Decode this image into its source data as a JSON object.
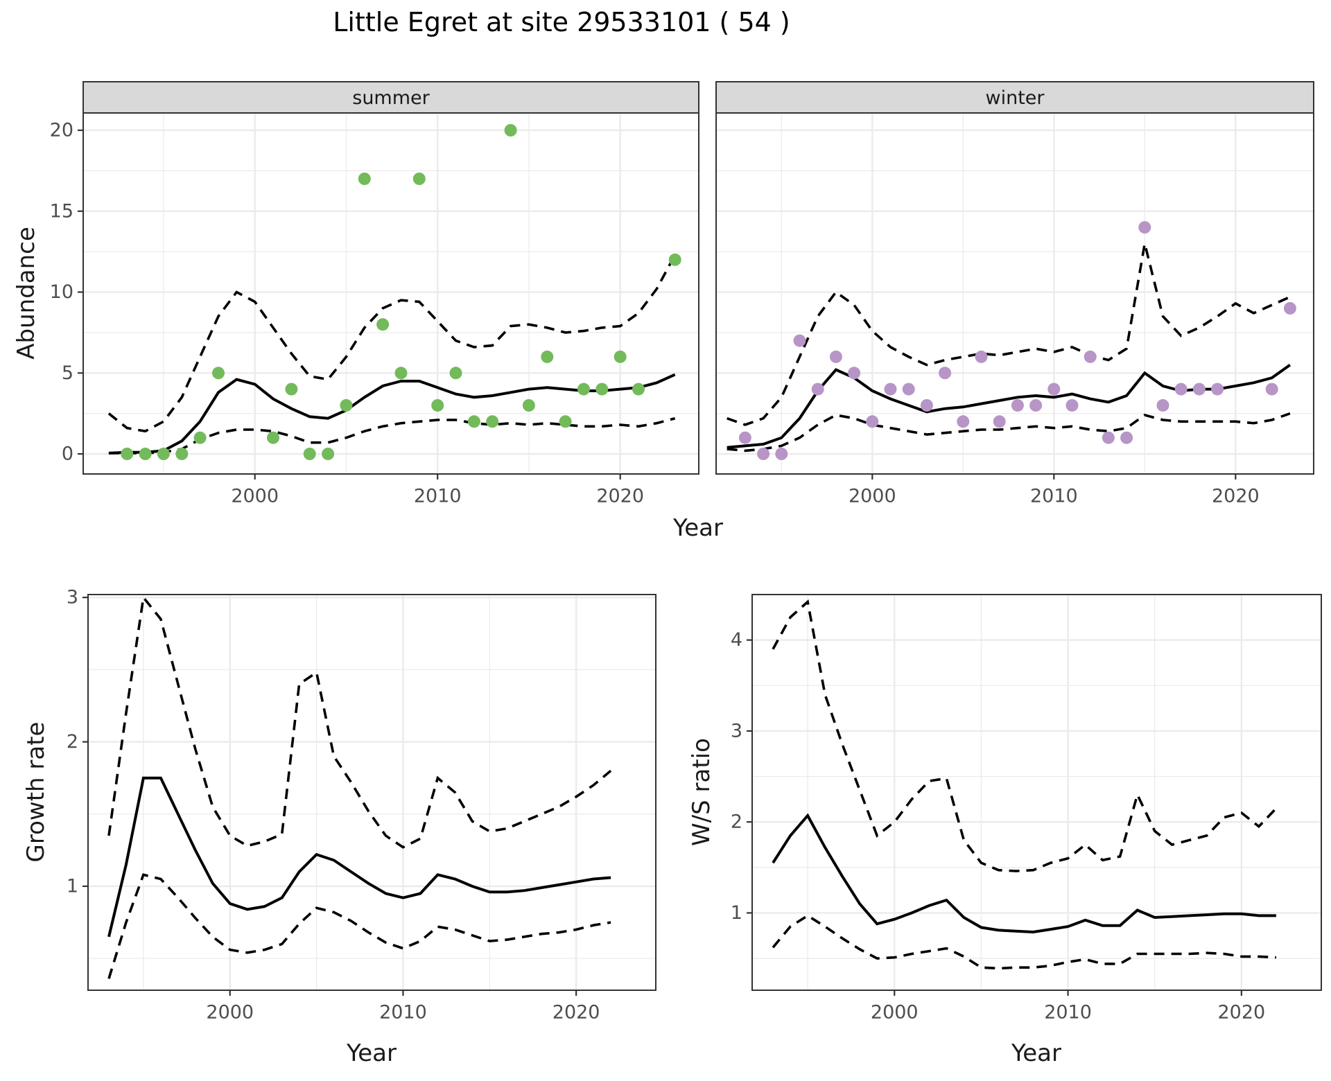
{
  "title": "Little Egret at site 29533101 ( 54 )",
  "colors": {
    "summer_point": "#73BA5B",
    "winter_point": "#B795C7",
    "line": "#000000",
    "panel_border": "#333333",
    "grid": "#EBEBEB",
    "strip_bg": "#D9D9D9",
    "tick_text": "#4D4D4D",
    "label_text": "#1A1A1A",
    "background": "#FFFFFF"
  },
  "chart_data": [
    {
      "type": "scatter+line",
      "facet": "summer",
      "xlabel": "Year",
      "ylabel": "Abundance",
      "xlim": [
        1990.6,
        2024.3
      ],
      "ylim": [
        -1.24,
        21.07
      ],
      "xticks": [
        2000,
        2010,
        2020
      ],
      "xminor": [
        1995,
        2005,
        2015
      ],
      "yticks": [
        0,
        5,
        10,
        15,
        20
      ],
      "yminor": [
        2.5,
        7.5,
        12.5,
        17.5
      ],
      "grid": "on",
      "legend": "none",
      "points": {
        "years": [
          1993,
          1994,
          1995,
          1996,
          1997,
          1998,
          2001,
          2002,
          2003,
          2004,
          2005,
          2006,
          2007,
          2008,
          2009,
          2010,
          2011,
          2012,
          2013,
          2014,
          2015,
          2016,
          2017,
          2018,
          2019,
          2020,
          2021,
          2023
        ],
        "values": [
          0,
          0,
          0,
          0,
          1,
          5,
          1,
          4,
          0,
          0,
          3,
          17,
          8,
          5,
          17,
          3,
          5,
          2,
          2,
          20,
          3,
          6,
          2,
          4,
          4,
          6,
          4,
          12
        ]
      },
      "series": [
        {
          "name": "median",
          "style": "solid",
          "year_start": 1992,
          "values": [
            0.05,
            0.1,
            0.1,
            0.2,
            0.8,
            2.0,
            3.8,
            4.6,
            4.3,
            3.4,
            2.8,
            2.3,
            2.2,
            2.7,
            3.5,
            4.2,
            4.5,
            4.5,
            4.1,
            3.7,
            3.5,
            3.6,
            3.8,
            4.0,
            4.1,
            4.0,
            3.9,
            3.9,
            4.0,
            4.1,
            4.4,
            4.9
          ]
        },
        {
          "name": "upper 95% CI",
          "style": "dashed",
          "year_start": 1992,
          "values": [
            2.5,
            1.6,
            1.4,
            2.0,
            3.5,
            6.0,
            8.5,
            10.0,
            9.4,
            7.8,
            6.2,
            4.8,
            4.6,
            6.0,
            7.8,
            9.0,
            9.5,
            9.4,
            8.2,
            7.0,
            6.6,
            6.7,
            7.9,
            8.0,
            7.8,
            7.5,
            7.6,
            7.8,
            7.9,
            8.7,
            10.2,
            12.3
          ]
        },
        {
          "name": "lower 95% CI",
          "style": "dashed",
          "year_start": 1992,
          "values": [
            0.05,
            0.05,
            0.05,
            0.1,
            0.3,
            0.9,
            1.3,
            1.5,
            1.5,
            1.4,
            1.1,
            0.7,
            0.7,
            1.0,
            1.4,
            1.7,
            1.9,
            2.0,
            2.1,
            2.1,
            1.9,
            1.8,
            1.9,
            1.8,
            1.9,
            1.8,
            1.7,
            1.7,
            1.8,
            1.7,
            1.9,
            2.2
          ]
        }
      ]
    },
    {
      "type": "scatter+line",
      "facet": "winter",
      "xlabel": "",
      "ylabel": "",
      "xlim": [
        1991.4,
        2024.3
      ],
      "ylim": [
        -1.24,
        21.07
      ],
      "xticks": [
        2000,
        2010,
        2020
      ],
      "xminor": [
        1995,
        2005,
        2015
      ],
      "yticks": [
        0,
        5,
        10,
        15,
        20
      ],
      "yminor": [
        2.5,
        7.5,
        12.5,
        17.5
      ],
      "grid": "on",
      "legend": "none",
      "points": {
        "years": [
          1993,
          1994,
          1995,
          1996,
          1997,
          1998,
          1999,
          2000,
          2001,
          2002,
          2003,
          2004,
          2005,
          2006,
          2007,
          2008,
          2009,
          2010,
          2011,
          2012,
          2013,
          2014,
          2015,
          2016,
          2017,
          2018,
          2019,
          2022,
          2023
        ],
        "values": [
          1,
          0,
          0,
          7,
          4,
          6,
          5,
          2,
          4,
          4,
          3,
          5,
          2,
          6,
          2,
          3,
          3,
          4,
          3,
          6,
          1,
          1,
          14,
          3,
          4,
          4,
          4,
          4,
          9
        ]
      },
      "series": [
        {
          "name": "median",
          "style": "solid",
          "year_start": 1992,
          "values": [
            0.4,
            0.5,
            0.6,
            1.0,
            2.2,
            3.9,
            5.2,
            4.7,
            3.9,
            3.4,
            3.0,
            2.6,
            2.8,
            2.9,
            3.1,
            3.3,
            3.5,
            3.6,
            3.5,
            3.7,
            3.4,
            3.2,
            3.6,
            5.0,
            4.2,
            3.9,
            4.0,
            4.0,
            4.2,
            4.4,
            4.7,
            5.5
          ]
        },
        {
          "name": "upper 95% CI",
          "style": "dashed",
          "year_start": 1992,
          "values": [
            2.2,
            1.8,
            2.2,
            3.5,
            6.0,
            8.5,
            10.0,
            9.2,
            7.6,
            6.6,
            6.0,
            5.5,
            5.8,
            6.0,
            6.2,
            6.1,
            6.3,
            6.5,
            6.3,
            6.6,
            6.1,
            5.8,
            6.5,
            13.0,
            8.5,
            7.3,
            7.8,
            8.5,
            9.3,
            8.7,
            9.2,
            9.7
          ]
        },
        {
          "name": "lower 95% CI",
          "style": "dashed",
          "year_start": 1992,
          "values": [
            0.3,
            0.2,
            0.3,
            0.5,
            1.0,
            1.8,
            2.4,
            2.2,
            1.8,
            1.6,
            1.4,
            1.2,
            1.3,
            1.4,
            1.5,
            1.5,
            1.6,
            1.7,
            1.6,
            1.7,
            1.5,
            1.4,
            1.6,
            2.4,
            2.1,
            2.0,
            2.0,
            2.0,
            2.0,
            1.9,
            2.1,
            2.5
          ]
        }
      ]
    },
    {
      "type": "line",
      "facet": "",
      "xlabel": "Year",
      "ylabel": "Growth rate",
      "xlim": [
        1991.8,
        2024.6
      ],
      "ylim": [
        0.28,
        3.02
      ],
      "xticks": [
        2000,
        2010,
        2020
      ],
      "xminor": [
        1995,
        2005,
        2015
      ],
      "yticks": [
        1,
        2,
        3
      ],
      "yminor": [
        0.5,
        1.5,
        2.5
      ],
      "grid": "on",
      "legend": "none",
      "series": [
        {
          "name": "median",
          "style": "solid",
          "year_start": 1993,
          "values": [
            0.65,
            1.15,
            1.75,
            1.75,
            1.5,
            1.25,
            1.02,
            0.88,
            0.84,
            0.86,
            0.92,
            1.1,
            1.22,
            1.18,
            1.1,
            1.02,
            0.95,
            0.92,
            0.95,
            1.08,
            1.05,
            1.0,
            0.96,
            0.96,
            0.97,
            0.99,
            1.01,
            1.03,
            1.05,
            1.06
          ]
        },
        {
          "name": "upper 95% CI",
          "style": "dashed",
          "year_start": 1993,
          "values": [
            1.35,
            2.2,
            3.0,
            2.85,
            2.4,
            1.95,
            1.55,
            1.35,
            1.28,
            1.31,
            1.36,
            2.4,
            2.48,
            1.9,
            1.72,
            1.52,
            1.35,
            1.27,
            1.33,
            1.75,
            1.65,
            1.45,
            1.38,
            1.4,
            1.45,
            1.5,
            1.55,
            1.62,
            1.7,
            1.8
          ]
        },
        {
          "name": "lower 95% CI",
          "style": "dashed",
          "year_start": 1993,
          "values": [
            0.36,
            0.75,
            1.08,
            1.05,
            0.92,
            0.78,
            0.65,
            0.56,
            0.54,
            0.56,
            0.6,
            0.74,
            0.85,
            0.82,
            0.76,
            0.68,
            0.61,
            0.57,
            0.62,
            0.72,
            0.7,
            0.66,
            0.62,
            0.63,
            0.65,
            0.67,
            0.68,
            0.7,
            0.73,
            0.75
          ]
        }
      ]
    },
    {
      "type": "line",
      "facet": "",
      "xlabel": "Year",
      "ylabel": "W/S ratio",
      "xlim": [
        1991.8,
        2024.6
      ],
      "ylim": [
        0.15,
        4.5
      ],
      "xticks": [
        2000,
        2010,
        2020
      ],
      "xminor": [
        1995,
        2005,
        2015
      ],
      "yticks": [
        1,
        2,
        3,
        4
      ],
      "yminor": [
        0.5,
        1.5,
        2.5,
        3.5,
        4.5
      ],
      "grid": "on",
      "legend": "none",
      "series": [
        {
          "name": "median",
          "style": "solid",
          "year_start": 1993,
          "values": [
            1.55,
            1.85,
            2.07,
            1.72,
            1.4,
            1.1,
            0.88,
            0.93,
            1.0,
            1.08,
            1.14,
            0.95,
            0.84,
            0.81,
            0.8,
            0.79,
            0.82,
            0.85,
            0.92,
            0.86,
            0.86,
            1.03,
            0.95,
            0.96,
            0.97,
            0.98,
            0.99,
            0.99,
            0.97,
            0.97
          ]
        },
        {
          "name": "upper 95% CI",
          "style": "dashed",
          "year_start": 1993,
          "values": [
            3.9,
            4.25,
            4.42,
            3.4,
            2.85,
            2.35,
            1.85,
            2.0,
            2.25,
            2.45,
            2.48,
            1.8,
            1.55,
            1.47,
            1.46,
            1.47,
            1.55,
            1.6,
            1.75,
            1.58,
            1.62,
            2.3,
            1.9,
            1.75,
            1.8,
            1.85,
            2.05,
            2.1,
            1.95,
            2.15
          ]
        },
        {
          "name": "lower 95% CI",
          "style": "dashed",
          "year_start": 1993,
          "values": [
            0.62,
            0.85,
            0.97,
            0.85,
            0.72,
            0.6,
            0.5,
            0.51,
            0.55,
            0.58,
            0.61,
            0.52,
            0.4,
            0.39,
            0.4,
            0.4,
            0.42,
            0.46,
            0.49,
            0.44,
            0.44,
            0.55,
            0.55,
            0.55,
            0.55,
            0.56,
            0.55,
            0.52,
            0.52,
            0.51
          ]
        }
      ]
    }
  ]
}
